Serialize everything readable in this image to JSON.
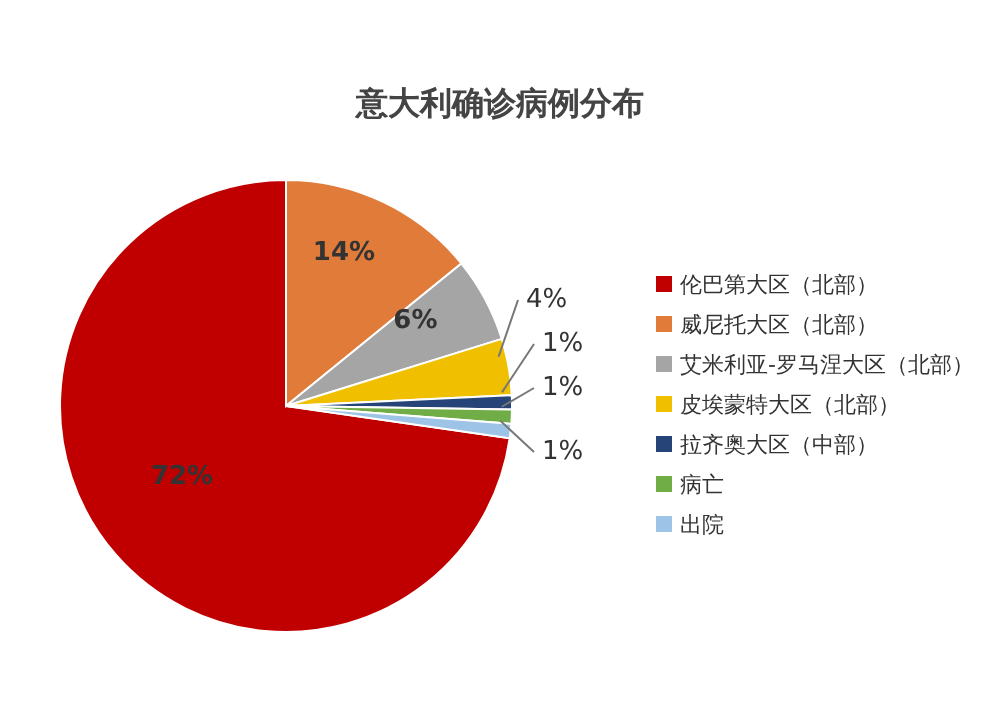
{
  "chart_data": {
    "type": "pie",
    "title": "意大利确诊病例分布",
    "categories": [
      "伦巴第大区（北部）",
      "威尼托大区（北部）",
      "艾米利亚-罗马涅大区（北部）",
      "皮埃蒙特大区（北部）",
      "拉齐奥大区（中部）",
      "病亡",
      "出院"
    ],
    "values": [
      72,
      14,
      6,
      4,
      1,
      1,
      1
    ],
    "colors": [
      "#c00000",
      "#e07b39",
      "#a5a5a5",
      "#f0c000",
      "#264478",
      "#70ad47",
      "#9dc3e6"
    ],
    "value_labels": [
      "72%",
      "14%",
      "6%",
      "4%",
      "1%",
      "1%",
      "1%"
    ],
    "legend": "right"
  }
}
